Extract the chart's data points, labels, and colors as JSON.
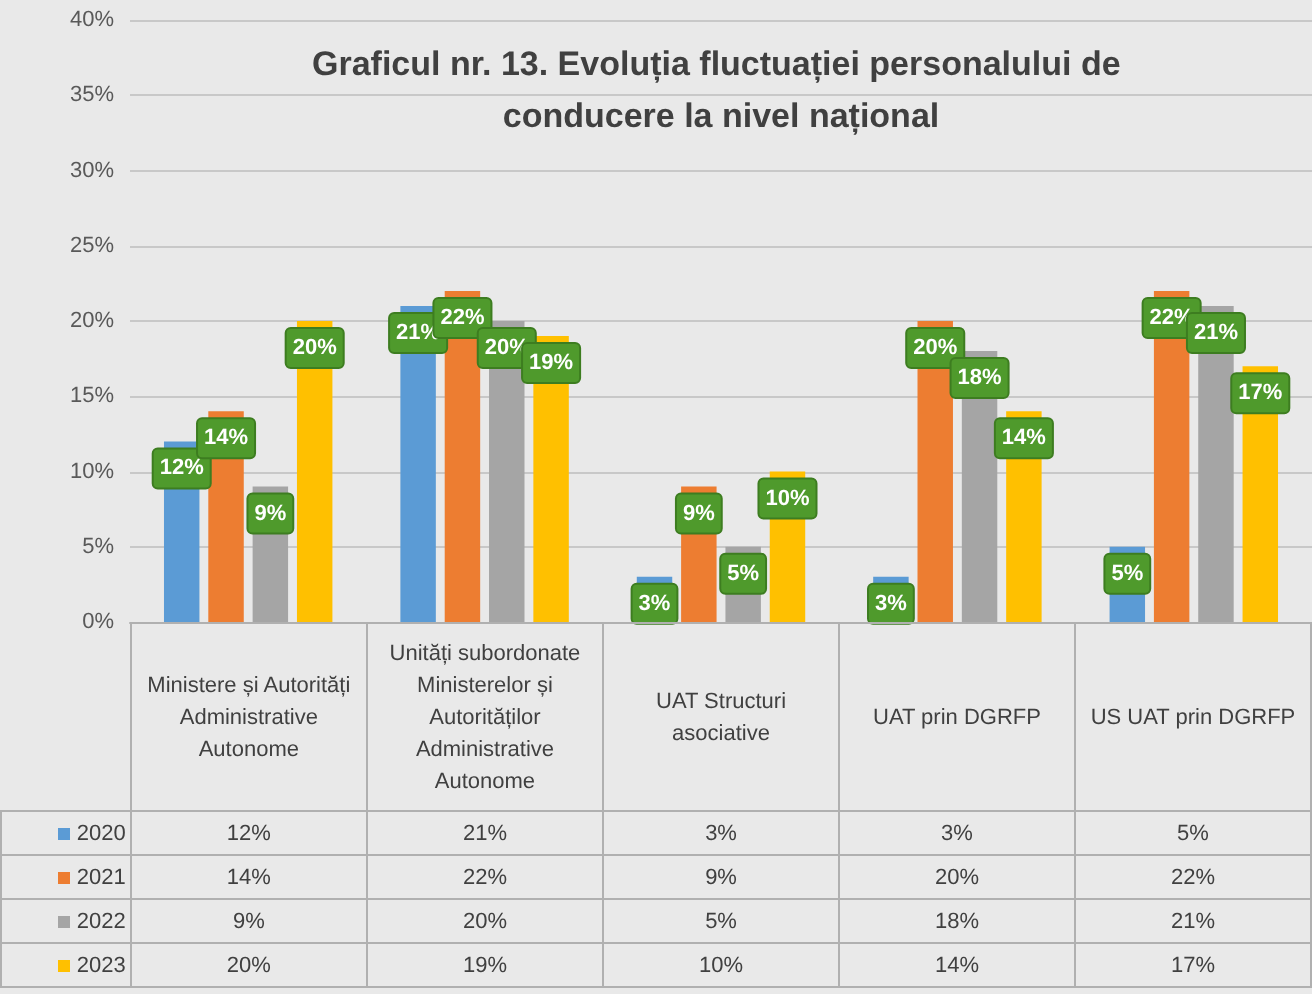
{
  "chart_data": {
    "type": "bar",
    "title": "Graficul nr. 13. Evoluția fluctuației personalului de conducere la nivel național",
    "categories": [
      "Ministere și Autorități Administrative Autonome",
      "Unități subordonate Ministerelor și Autorităților Administrative Autonome",
      "UAT Structuri asociative",
      "UAT prin DGRFP",
      "US UAT prin DGRFP"
    ],
    "series": [
      {
        "name": "2020",
        "color": "#5b9bd5",
        "values": [
          12,
          21,
          3,
          3,
          5
        ],
        "value_labels": [
          "12%",
          "21%",
          "3%",
          "3%",
          "5%"
        ]
      },
      {
        "name": "2021",
        "color": "#ed7d31",
        "values": [
          14,
          22,
          9,
          20,
          22
        ],
        "value_labels": [
          "14%",
          "22%",
          "9%",
          "20%",
          "22%"
        ]
      },
      {
        "name": "2022",
        "color": "#a5a5a5",
        "values": [
          9,
          20,
          5,
          18,
          21
        ],
        "value_labels": [
          "9%",
          "20%",
          "5%",
          "18%",
          "21%"
        ]
      },
      {
        "name": "2023",
        "color": "#ffc000",
        "values": [
          20,
          19,
          10,
          14,
          17
        ],
        "value_labels": [
          "20%",
          "19%",
          "10%",
          "14%",
          "17%"
        ]
      }
    ],
    "ylim": [
      0,
      40
    ],
    "yticks": [
      {
        "value": 0,
        "label": "0%"
      },
      {
        "value": 5,
        "label": "5%"
      },
      {
        "value": 10,
        "label": "10%"
      },
      {
        "value": 15,
        "label": "15%"
      },
      {
        "value": 20,
        "label": "20%"
      },
      {
        "value": 25,
        "label": "25%"
      },
      {
        "value": 30,
        "label": "30%"
      },
      {
        "value": 35,
        "label": "35%"
      },
      {
        "value": 40,
        "label": "40%"
      }
    ],
    "grid": "y",
    "legend": "bottom"
  }
}
